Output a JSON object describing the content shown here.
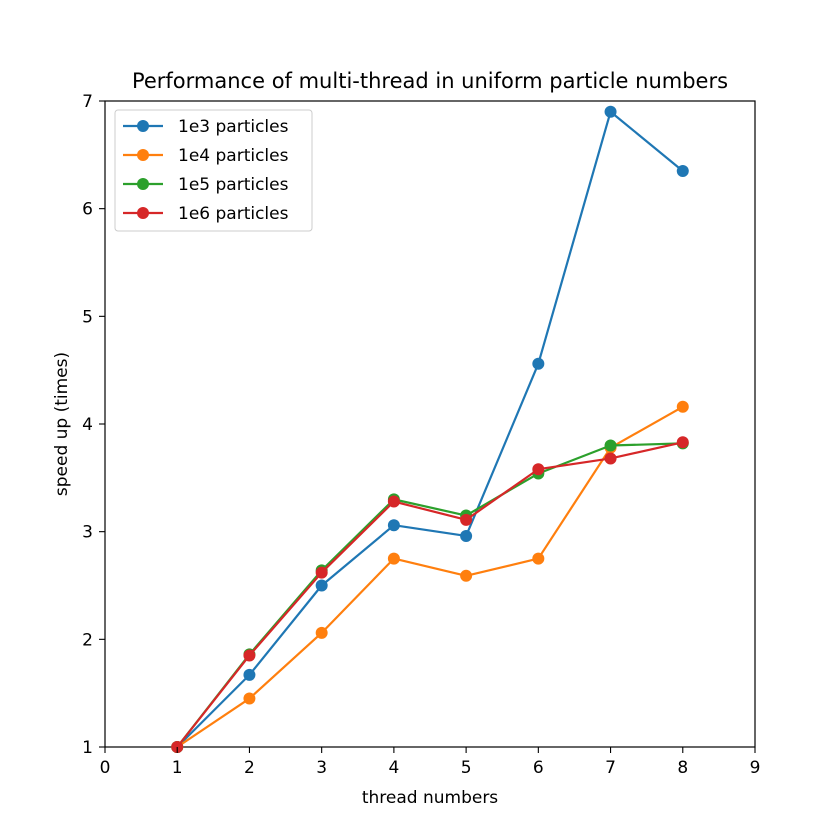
{
  "chart_data": {
    "type": "line",
    "title": "Performance of multi-thread in uniform particle numbers",
    "xlabel": "thread numbers",
    "ylabel": "speed up (times)",
    "xlim": [
      0,
      9
    ],
    "ylim": [
      1,
      7
    ],
    "x_ticks": [
      "0",
      "1",
      "2",
      "3",
      "4",
      "5",
      "6",
      "7",
      "8",
      "9"
    ],
    "y_ticks": [
      "1",
      "2",
      "3",
      "4",
      "5",
      "6",
      "7"
    ],
    "grid": false,
    "legend_position": "top-left",
    "x": [
      1,
      2,
      3,
      4,
      5,
      6,
      7,
      8
    ],
    "series": [
      {
        "name": "1e3 particles",
        "color": "#1f77b4",
        "values": [
          1.0,
          1.67,
          2.5,
          3.06,
          2.96,
          4.56,
          6.9,
          6.35
        ]
      },
      {
        "name": "1e4 particles",
        "color": "#ff7f0e",
        "values": [
          1.0,
          1.45,
          2.06,
          2.75,
          2.59,
          2.75,
          3.78,
          4.16
        ]
      },
      {
        "name": "1e5 particles",
        "color": "#2ca02c",
        "values": [
          1.0,
          1.86,
          2.64,
          3.3,
          3.15,
          3.54,
          3.8,
          3.82
        ]
      },
      {
        "name": "1e6 particles",
        "color": "#d62728",
        "values": [
          1.0,
          1.85,
          2.62,
          3.28,
          3.11,
          3.58,
          3.68,
          3.83
        ]
      }
    ]
  }
}
